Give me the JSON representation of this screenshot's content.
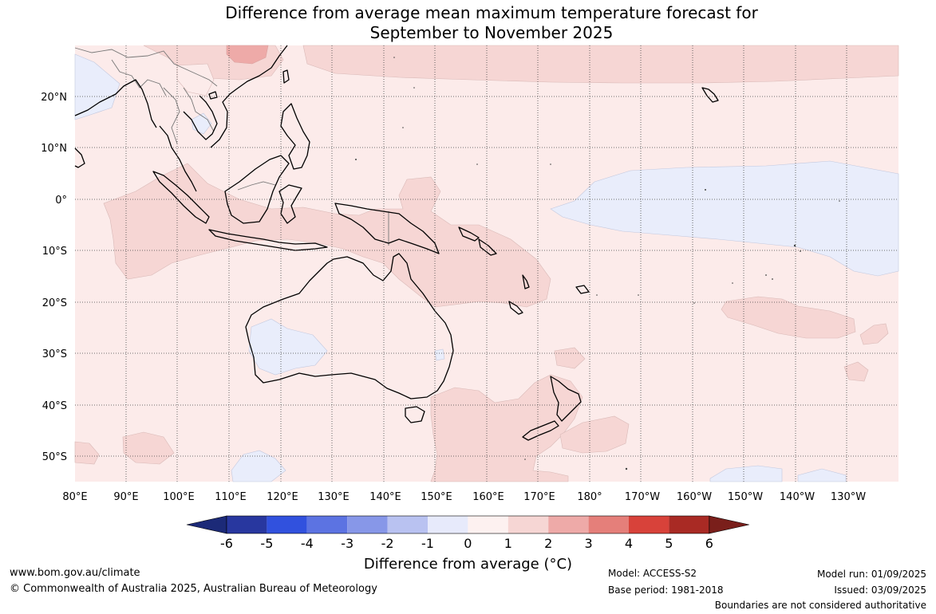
{
  "title": {
    "line1": "Difference from average mean maximum temperature forecast for",
    "line2": "September to November 2025"
  },
  "map": {
    "lon_labels": [
      "80°E",
      "90°E",
      "100°E",
      "110°E",
      "120°E",
      "130°E",
      "140°E",
      "150°E",
      "160°E",
      "170°E",
      "180°",
      "170°W",
      "160°W",
      "150°W",
      "140°W",
      "130°W"
    ],
    "lat_labels": [
      "20°N",
      "10°N",
      "0°",
      "10°S",
      "20°S",
      "30°S",
      "40°S",
      "50°S"
    ],
    "colors": {
      "warm_light": "#fcebea",
      "warm_mid": "#f6d6d4",
      "warm_strong": "#eeaaa8",
      "cool_light": "#e9edfb",
      "coast": "#000000",
      "borders": "#777777"
    }
  },
  "colorbar": {
    "ticks": [
      "-6",
      "-5",
      "-4",
      "-3",
      "-2",
      "-1",
      "0",
      "1",
      "2",
      "3",
      "4",
      "5",
      "6"
    ],
    "colors": [
      "#28379f",
      "#3151de",
      "#5c73e2",
      "#8797e8",
      "#b9c2f1",
      "#e7eafb",
      "#fdf1f0",
      "#f6d6d4",
      "#eeaaa8",
      "#e57f7a",
      "#d8423a",
      "#a92a24"
    ],
    "extend_low": "#1c2a78",
    "extend_high": "#7a1f1b",
    "label": "Difference from average (°C)"
  },
  "footer": {
    "url": "www.bom.gov.au/climate",
    "copyright": "© Commonwealth of Australia 2025, Australian Bureau of Meteorology",
    "model": "Model: ACCESS-S2",
    "base_period": "Base period: 1981-2018",
    "model_run": "Model run: 01/09/2025",
    "issued": "Issued: 03/09/2025",
    "disclaimer": "Boundaries are not considered authoritative"
  }
}
